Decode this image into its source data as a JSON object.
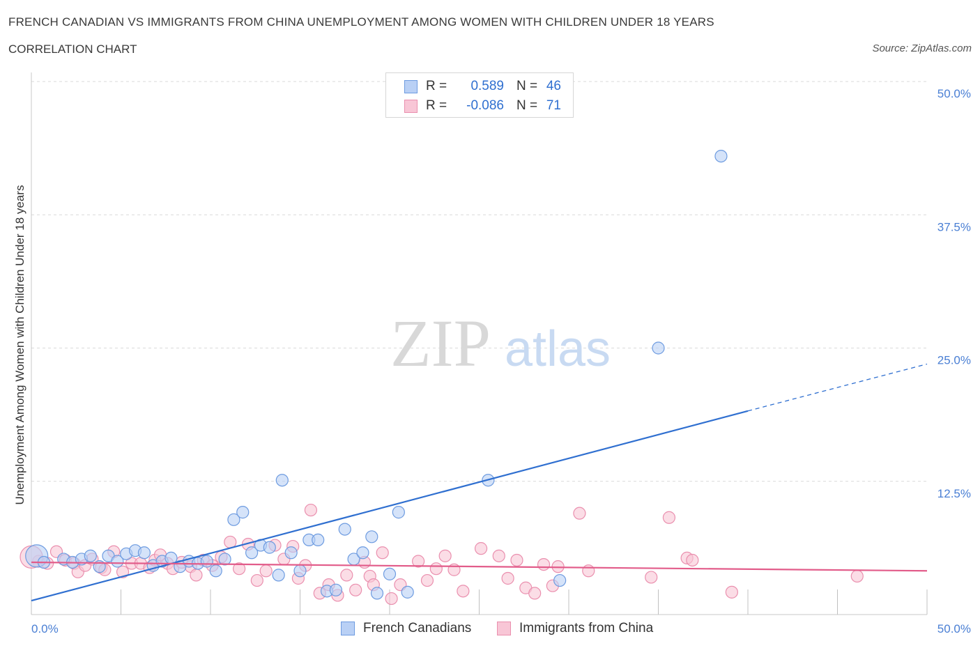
{
  "title": "FRENCH CANADIAN VS IMMIGRANTS FROM CHINA UNEMPLOYMENT AMONG WOMEN WITH CHILDREN UNDER 18 YEARS",
  "subtitle": "CORRELATION CHART",
  "source": "Source: ZipAtlas.com",
  "watermark": {
    "zip": "ZIP",
    "atlas": "atlas"
  },
  "legend": {
    "rows": [
      {
        "r_label": "R =",
        "r_value": "0.589",
        "n_label": "N =",
        "n_value": "46"
      },
      {
        "r_label": "R =",
        "r_value": "-0.086",
        "n_label": "N =",
        "n_value": "71"
      }
    ]
  },
  "bottom_legend": [
    "French Canadians",
    "Immigrants from China"
  ],
  "colors": {
    "blue_fill": "#b9d0f5",
    "blue_stroke": "#6d9be0",
    "blue_line": "#2f6fd0",
    "pink_fill": "#f8c6d6",
    "pink_stroke": "#ea8fae",
    "pink_line": "#e25c8a",
    "tick": "#4a7fd4"
  },
  "chart_data": {
    "type": "scatter",
    "title": "FRENCH CANADIAN VS IMMIGRANTS FROM CHINA UNEMPLOYMENT AMONG WOMEN WITH CHILDREN UNDER 18 YEARS",
    "xlabel": "",
    "ylabel": "Unemployment Among Women with Children Under 18 years",
    "xlim": [
      0,
      50
    ],
    "ylim": [
      0,
      50
    ],
    "x_tick_labels": [
      "0.0%",
      "50.0%"
    ],
    "y_ticks": [
      12.5,
      25.0,
      37.5,
      50.0
    ],
    "y_tick_labels": [
      "12.5%",
      "25.0%",
      "37.5%",
      "50.0%"
    ],
    "series": [
      {
        "name": "French Canadians",
        "R": 0.589,
        "N": 46,
        "trend": {
          "x0": 0,
          "y0": 1.3,
          "x1": 40,
          "y1": 19.1,
          "dash_to_x": 50,
          "dash_to_y": 23.5
        },
        "points": [
          [
            0.3,
            5.5
          ],
          [
            0.7,
            4.9
          ],
          [
            1.8,
            5.2
          ],
          [
            2.3,
            4.9
          ],
          [
            2.8,
            5.2
          ],
          [
            3.3,
            5.5
          ],
          [
            3.8,
            4.5
          ],
          [
            4.3,
            5.5
          ],
          [
            4.8,
            5.0
          ],
          [
            5.3,
            5.7
          ],
          [
            5.8,
            6.0
          ],
          [
            6.3,
            5.8
          ],
          [
            6.8,
            4.6
          ],
          [
            7.3,
            5.0
          ],
          [
            7.8,
            5.3
          ],
          [
            8.3,
            4.5
          ],
          [
            8.8,
            5.0
          ],
          [
            9.3,
            4.8
          ],
          [
            9.8,
            5.0
          ],
          [
            10.3,
            4.1
          ],
          [
            10.8,
            5.2
          ],
          [
            11.3,
            8.9
          ],
          [
            11.8,
            9.6
          ],
          [
            12.3,
            5.8
          ],
          [
            12.8,
            6.5
          ],
          [
            13.3,
            6.3
          ],
          [
            13.8,
            3.7
          ],
          [
            14.0,
            12.6
          ],
          [
            14.5,
            5.8
          ],
          [
            15.0,
            4.1
          ],
          [
            15.5,
            7.0
          ],
          [
            16.0,
            7.0
          ],
          [
            16.5,
            2.2
          ],
          [
            17.0,
            2.3
          ],
          [
            17.5,
            8.0
          ],
          [
            18.0,
            5.2
          ],
          [
            18.5,
            5.8
          ],
          [
            19.0,
            7.3
          ],
          [
            19.3,
            2.0
          ],
          [
            20.0,
            3.8
          ],
          [
            20.5,
            9.6
          ],
          [
            21.0,
            2.1
          ],
          [
            25.5,
            12.6
          ],
          [
            29.5,
            3.2
          ],
          [
            35.0,
            25.0
          ],
          [
            38.5,
            43.0
          ]
        ]
      },
      {
        "name": "Immigrants from China",
        "R": -0.086,
        "N": 71,
        "trend": {
          "x0": 0,
          "y0": 4.9,
          "x1": 50,
          "y1": 4.1
        },
        "points": [
          [
            0.4,
            5.0
          ],
          [
            0.9,
            4.8
          ],
          [
            1.4,
            5.9
          ],
          [
            1.9,
            5.1
          ],
          [
            2.4,
            4.8
          ],
          [
            2.6,
            4.0
          ],
          [
            3.0,
            4.6
          ],
          [
            3.4,
            5.2
          ],
          [
            3.9,
            4.4
          ],
          [
            4.1,
            4.2
          ],
          [
            4.6,
            5.9
          ],
          [
            5.1,
            4.0
          ],
          [
            5.6,
            4.8
          ],
          [
            6.1,
            4.8
          ],
          [
            6.6,
            4.4
          ],
          [
            6.9,
            5.1
          ],
          [
            7.2,
            5.6
          ],
          [
            7.6,
            4.8
          ],
          [
            7.9,
            4.3
          ],
          [
            8.4,
            4.9
          ],
          [
            8.9,
            4.5
          ],
          [
            9.2,
            3.7
          ],
          [
            9.6,
            5.1
          ],
          [
            10.1,
            4.6
          ],
          [
            10.6,
            5.4
          ],
          [
            11.1,
            6.8
          ],
          [
            11.6,
            4.3
          ],
          [
            12.1,
            6.6
          ],
          [
            12.6,
            3.2
          ],
          [
            13.1,
            4.1
          ],
          [
            13.6,
            6.5
          ],
          [
            14.1,
            5.2
          ],
          [
            14.6,
            6.4
          ],
          [
            14.9,
            3.4
          ],
          [
            15.3,
            4.6
          ],
          [
            15.6,
            9.8
          ],
          [
            16.1,
            2.0
          ],
          [
            16.6,
            2.8
          ],
          [
            17.1,
            1.8
          ],
          [
            17.6,
            3.7
          ],
          [
            18.1,
            2.3
          ],
          [
            18.6,
            4.9
          ],
          [
            18.9,
            3.6
          ],
          [
            19.1,
            2.8
          ],
          [
            19.6,
            5.8
          ],
          [
            20.1,
            1.5
          ],
          [
            20.6,
            2.8
          ],
          [
            21.6,
            5.0
          ],
          [
            22.1,
            3.2
          ],
          [
            22.6,
            4.3
          ],
          [
            23.1,
            5.5
          ],
          [
            23.6,
            4.2
          ],
          [
            24.1,
            2.2
          ],
          [
            25.1,
            6.2
          ],
          [
            26.1,
            5.5
          ],
          [
            26.6,
            3.4
          ],
          [
            27.1,
            5.1
          ],
          [
            27.6,
            2.5
          ],
          [
            28.1,
            2.0
          ],
          [
            28.6,
            4.7
          ],
          [
            29.1,
            2.7
          ],
          [
            29.4,
            4.5
          ],
          [
            30.6,
            9.5
          ],
          [
            31.1,
            4.1
          ],
          [
            34.6,
            3.5
          ],
          [
            35.6,
            9.1
          ],
          [
            36.6,
            5.3
          ],
          [
            36.9,
            5.1
          ],
          [
            39.1,
            2.1
          ],
          [
            46.1,
            3.6
          ],
          [
            0.0,
            5.4
          ]
        ]
      }
    ]
  }
}
